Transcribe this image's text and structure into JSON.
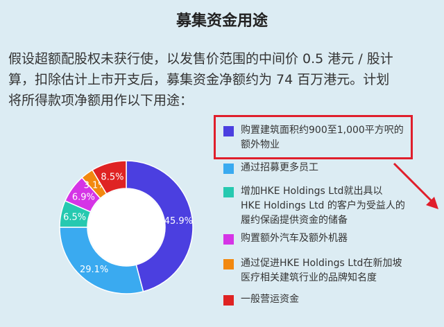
{
  "title": "募集资金用途",
  "intro_lines": [
    "假设超额配股权未获行使，以发售价范围的中间价 0.5 港元 / 股计",
    "算，扣除估计上市开支后，募集资金净额约为 74 百万港元。计划",
    "将所得款项净额用作以下用途："
  ],
  "chart_data": {
    "type": "pie",
    "donut": true,
    "title": "",
    "categories": [
      "购置建筑面积约900至1,000平方呎的额外物业",
      "通过招募更多员工",
      "增加HKE Holdings Ltd就出具以 HKE Holdings Ltd 的客户为受益人的履约保函提供资金的储备",
      "购置额外汽车及额外机器",
      "通过促进HKE Holdings Ltd在新加坡医疗相关建筑行业的品牌知名度",
      "一般营运资金"
    ],
    "values": [
      45.9,
      29.1,
      6.5,
      6.9,
      3.1,
      8.5
    ],
    "value_labels": [
      "45.9%",
      "29.1%",
      "6.5%",
      "6.9%",
      "3.1%",
      "8.5%"
    ],
    "colors": [
      "#4b3fe0",
      "#3aaaf0",
      "#26c9b0",
      "#d534e6",
      "#f2880f",
      "#df2323"
    ],
    "legend": {
      "position": "right",
      "lines": [
        [
          "购置建筑面积约900至1,000平方呎的",
          "额外物业"
        ],
        [
          "通过招募更多员工"
        ],
        [
          "增加HKE Holdings Ltd就出具以",
          " HKE Holdings Ltd 的客户为受益人的",
          "履约保函提供资金的储备"
        ],
        [
          "购置额外汽车及额外机器"
        ],
        [
          "通过促进HKE Holdings Ltd在新加坡",
          "医疗相关建筑行业的品牌知名度"
        ],
        [
          "一般营运资金"
        ]
      ]
    },
    "highlighted_item": 0
  }
}
